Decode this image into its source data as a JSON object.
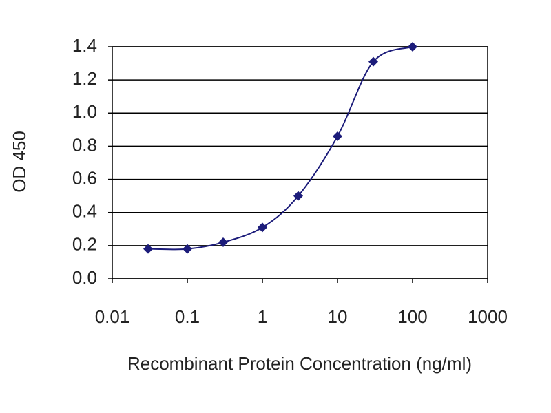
{
  "chart_data": {
    "type": "line",
    "xlabel": "Recombinant Protein Concentration (ng/ml)",
    "ylabel": "OD 450",
    "x": [
      0.03,
      0.1,
      0.3,
      1,
      3,
      10,
      30,
      100
    ],
    "series": [
      {
        "color": "#1c1c7a",
        "values": [
          0.18,
          0.18,
          0.22,
          0.31,
          0.5,
          0.86,
          1.31,
          1.4
        ]
      }
    ],
    "xscale": "log",
    "xlim": [
      0.01,
      1000
    ],
    "xticks": [
      0.01,
      0.1,
      1,
      10,
      100,
      1000
    ],
    "ylim": [
      0,
      1.4
    ],
    "yticks": [
      {
        "value": 0,
        "label": "0.0"
      },
      0.2,
      0.4,
      0.6,
      0.8,
      {
        "value": 1,
        "label": "1.0"
      },
      1.2,
      1.4
    ],
    "grid": true
  }
}
